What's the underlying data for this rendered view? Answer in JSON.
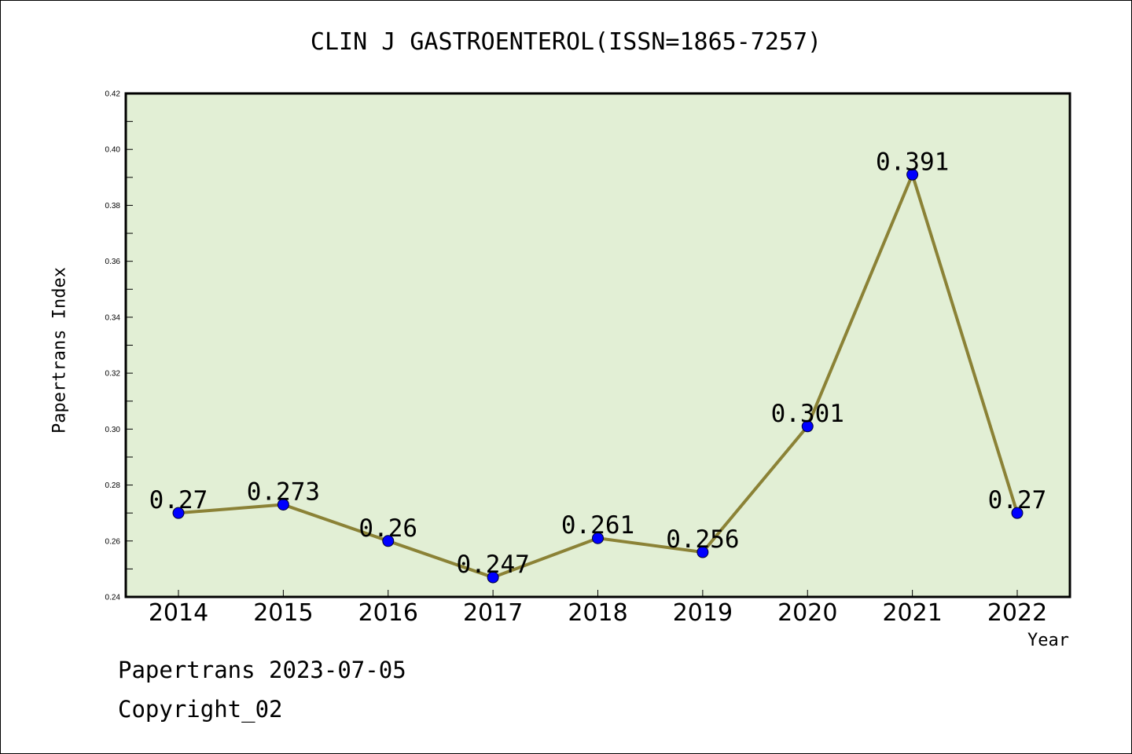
{
  "title": "CLIN J GASTROENTEROL(ISSN=1865-7257)",
  "footer": {
    "date_line": "Papertrans 2023-07-05",
    "copyright": "Copyright_02"
  },
  "colors": {
    "plot_background": "#e2efd5",
    "line": "#8b8236",
    "marker": "#0000ff"
  },
  "chart_data": {
    "type": "line",
    "title": "CLIN J GASTROENTEROL(ISSN=1865-7257)",
    "xlabel": "Year",
    "ylabel": "Papertrans Index",
    "categories": [
      "2014",
      "2015",
      "2016",
      "2017",
      "2018",
      "2019",
      "2020",
      "2021",
      "2022"
    ],
    "values": [
      0.27,
      0.273,
      0.26,
      0.247,
      0.261,
      0.256,
      0.301,
      0.391,
      0.27
    ],
    "data_labels": [
      "0.27",
      "0.273",
      "0.26",
      "0.247",
      "0.261",
      "0.256",
      "0.301",
      "0.391",
      "0.27"
    ],
    "ylim": [
      0.24,
      0.42
    ],
    "yticks": [
      "0.24",
      "0.26",
      "0.28",
      "0.30",
      "0.32",
      "0.34",
      "0.36",
      "0.38",
      "0.40",
      "0.42"
    ],
    "grid": false,
    "legend": "none"
  }
}
